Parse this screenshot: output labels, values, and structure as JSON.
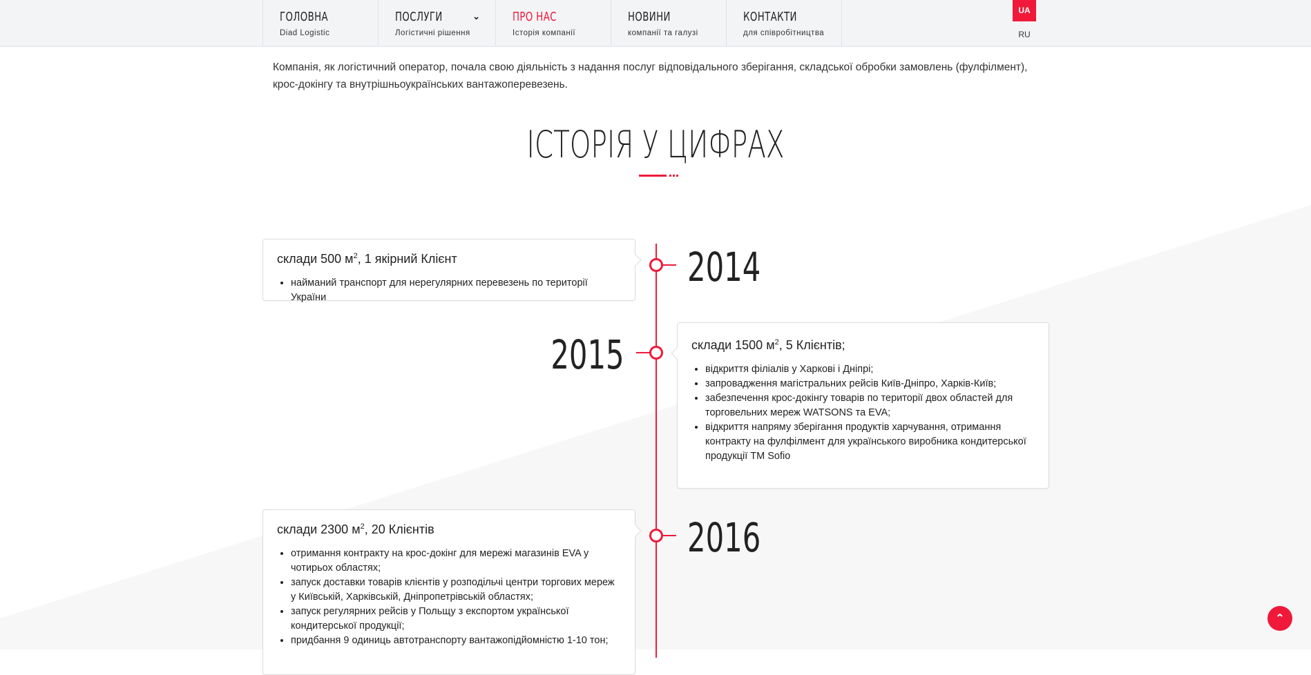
{
  "nav": {
    "items": [
      {
        "title": "ГОЛОВНА",
        "sub": "Diad Logistic"
      },
      {
        "title": "ПОСЛУГИ",
        "sub": "Логістичні рішення"
      },
      {
        "title": "ПРО НАС",
        "sub": "Історія компанії"
      },
      {
        "title": "НОВИНИ",
        "sub": "компанії та галузі"
      },
      {
        "title": "КОНТАКТИ",
        "sub": "для співробітництва"
      }
    ],
    "active": "ПРО НАС",
    "lang_active": "UA",
    "lang_other": "RU"
  },
  "intro": "Компанія, як логістичний оператор, почала свою діяльність з надання послуг відповідального зберігання, складської обробки замовлень (фулфілмент), крос-докінгу та внутрішньоукраїнських вантажоперевезень.",
  "section_title": "ІСТОРІЯ У ЦИФРАХ",
  "accent_color": "#f0193a",
  "timeline": [
    {
      "year": "2014",
      "title_pre": "склади 500 м",
      "title_sup": "2",
      "title_post": ", 1 якірний Клієнт",
      "items": [
        "найманий транспорт для нерегулярних перевезень по території України"
      ]
    },
    {
      "year": "2015",
      "title_pre": "склади 1500 м",
      "title_sup": "2",
      "title_post": ", 5 Клієнтів;",
      "items": [
        "відкриття філіалів у Харкові і Дніпрі;",
        "запровадження магістральних рейсів Київ-Дніпро, Харків-Київ;",
        "забезпечення крос-докінгу товарів по території двох областей для торговельних мереж WATSONS та EVA;",
        "відкриття напряму зберігання продуктів харчування, отримання контракту на фулфілмент для українського виробника кондитерської продукції ТМ Sofio"
      ]
    },
    {
      "year": "2016",
      "title_pre": "склади 2300 м",
      "title_sup": "2",
      "title_post": ", 20 Клієнтів",
      "items": [
        "отримання контракту на крос-докінг для мережі магазинів EVA у чотирьох областях;",
        "запуск доставки товарів клієнтів у розподільчі центри торгових мереж у Київській, Харківській, Дніпропетрівській областях;",
        "запуск регулярних рейсів у Польщу з експортом української кондитерської продукції;",
        "придбання 9 одиниць автотранспорту вантажопідйомністю 1-10 тон;"
      ]
    }
  ],
  "scroll_top_icon": "chevron-up-icon"
}
